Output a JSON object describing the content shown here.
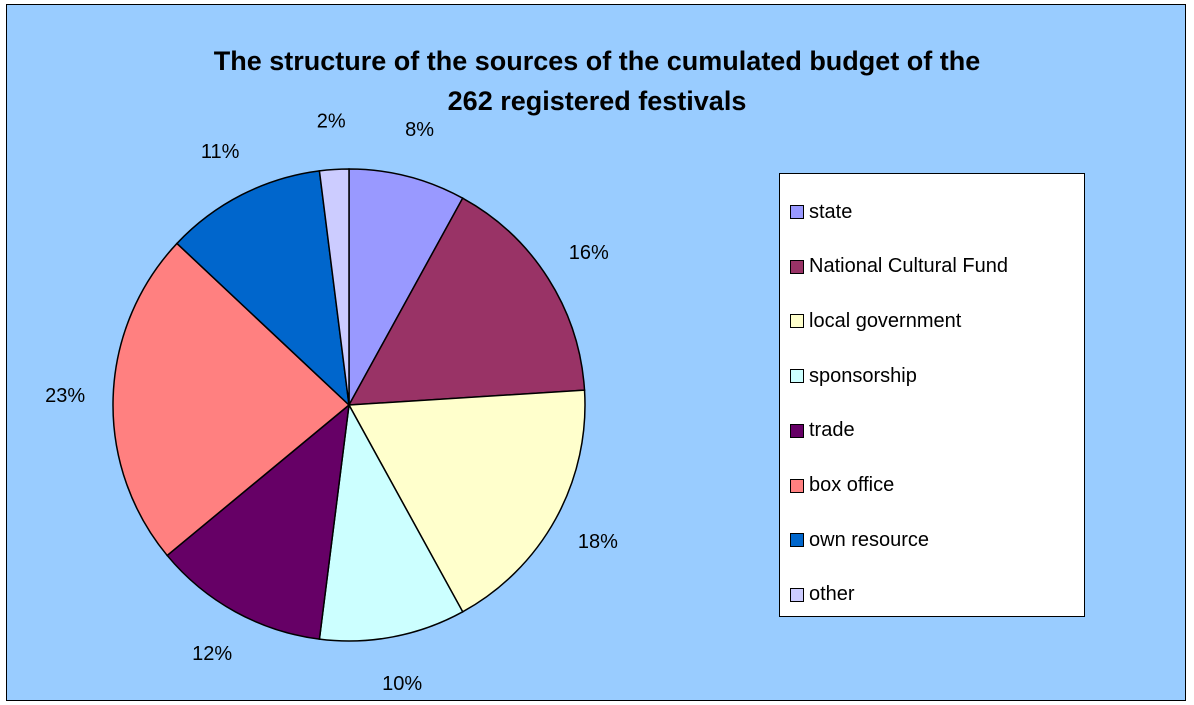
{
  "chart_data": {
    "type": "pie",
    "title": "The structure of the sources of the cumulated budget of the 262 registered festivals",
    "title_lines": [
      "The structure of the sources of the cumulated budget of the",
      "262 registered festivals"
    ],
    "legend_position": "right",
    "slices": [
      {
        "name": "state",
        "value": 8,
        "label": "8%",
        "color": "#9999ff"
      },
      {
        "name": "National Cultural Fund",
        "value": 16,
        "label": "16%",
        "color": "#993366"
      },
      {
        "name": "local government",
        "value": 18,
        "label": "18%",
        "color": "#ffffcc"
      },
      {
        "name": "sponsorship",
        "value": 10,
        "label": "10%",
        "color": "#ccffff"
      },
      {
        "name": "trade",
        "value": 12,
        "label": "12%",
        "color": "#660066"
      },
      {
        "name": "box office",
        "value": 23,
        "label": "23%",
        "color": "#ff8080"
      },
      {
        "name": "own resource",
        "value": 11,
        "label": "11%",
        "color": "#0066cc"
      },
      {
        "name": "other",
        "value": 2,
        "label": "2%",
        "color": "#ccccff"
      }
    ]
  }
}
